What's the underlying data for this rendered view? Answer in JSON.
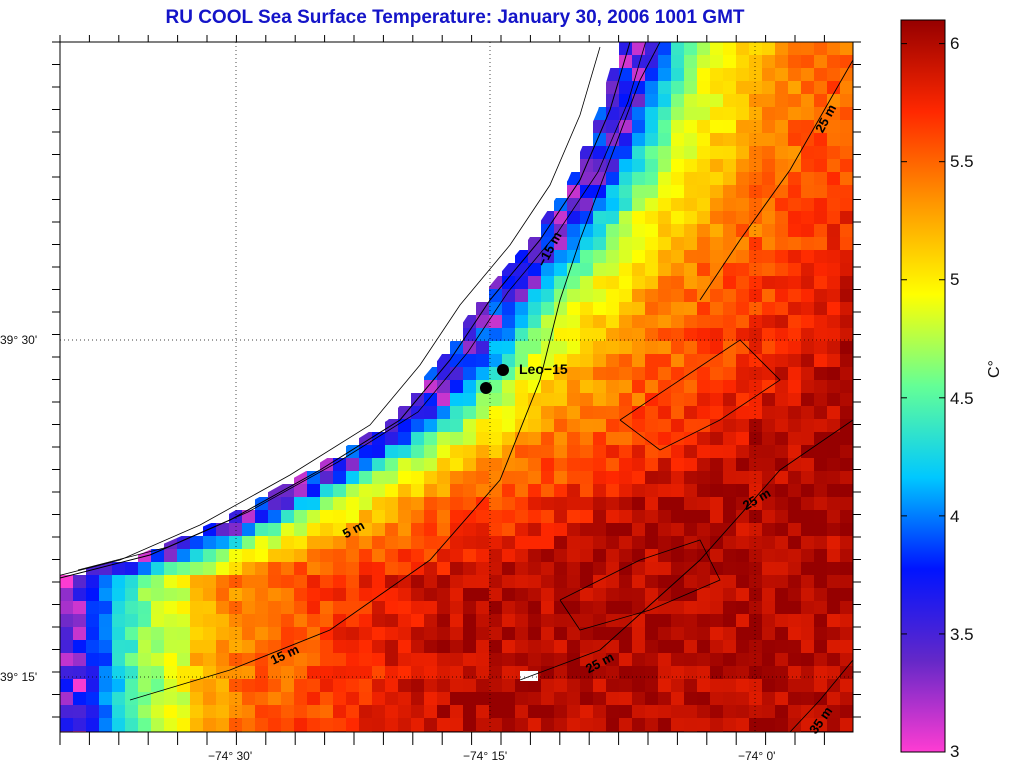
{
  "title": "RU COOL  Sea Surface Temperature:  January 30, 2006 1001 GMT",
  "lat_ticks": [
    "39° 30'",
    "39° 15'"
  ],
  "lon_ticks": [
    "−74° 30'",
    "−74° 15'",
    "−74° 0'"
  ],
  "colorbar": {
    "unit_label": "C°",
    "min": 3,
    "max": 6.1,
    "ticks": [
      "3",
      "3.5",
      "4",
      "4.5",
      "5",
      "5.5",
      "6"
    ],
    "colors": [
      "#ff3cd2",
      "#6428c8",
      "#0014ff",
      "#00c8ff",
      "#64ff96",
      "#ffff00",
      "#ff9600",
      "#ff2800",
      "#960000"
    ]
  },
  "contour_labels": [
    "−15 m",
    "5 m",
    "15 m",
    "25 m",
    "25 m",
    "25 m",
    "35 m"
  ],
  "station": {
    "label": "Leo−15"
  },
  "colors": {
    "title": "#1414c8",
    "land": "#ffffff",
    "coast_line": "#000000"
  }
}
